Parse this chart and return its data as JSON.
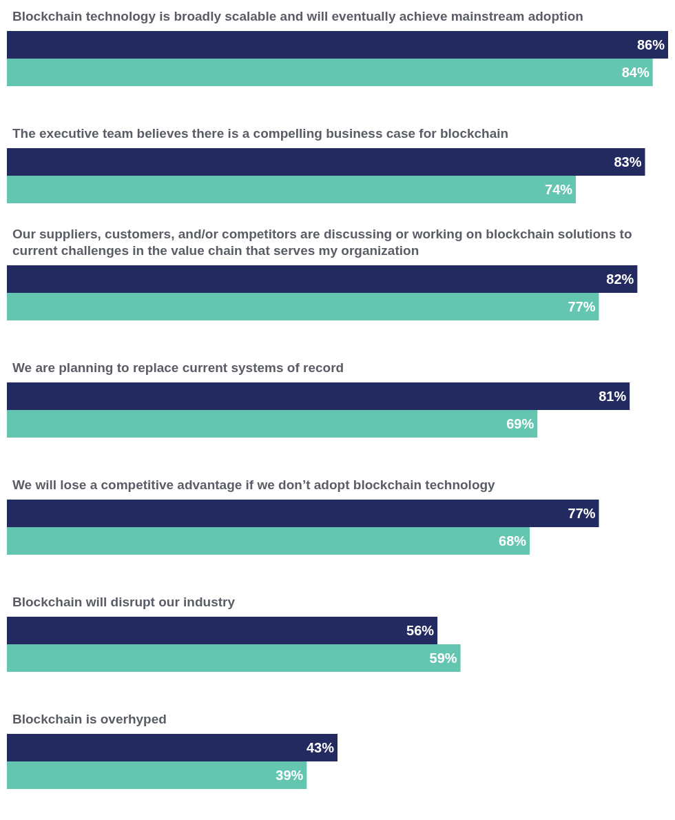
{
  "chart_data": {
    "type": "bar",
    "orientation": "horizontal",
    "categories": [
      "Blockchain technology is broadly scalable and will eventually achieve mainstream adoption",
      "The executive team believes there is a compelling business case for blockchain",
      "Our suppliers, customers, and/or competitors are discussing or working on blockchain solutions to current challenges in the value chain that serves my organization",
      "We are planning to replace current systems of record",
      "We will lose a competitive advantage if we don’t adopt blockchain technology",
      "Blockchain will disrupt our industry",
      "Blockchain is overhyped"
    ],
    "series": [
      {
        "color": "#222a60",
        "values": [
          86,
          83,
          82,
          81,
          77,
          56,
          43
        ],
        "value_labels": [
          "86%",
          "83%",
          "82%",
          "81%",
          "77%",
          "56%",
          "43%"
        ]
      },
      {
        "color": "#64c5b1",
        "values": [
          84,
          74,
          77,
          69,
          68,
          59,
          39
        ],
        "value_labels": [
          "84%",
          "74%",
          "77%",
          "69%",
          "68%",
          "59%",
          "39%"
        ]
      }
    ],
    "grid": false
  }
}
